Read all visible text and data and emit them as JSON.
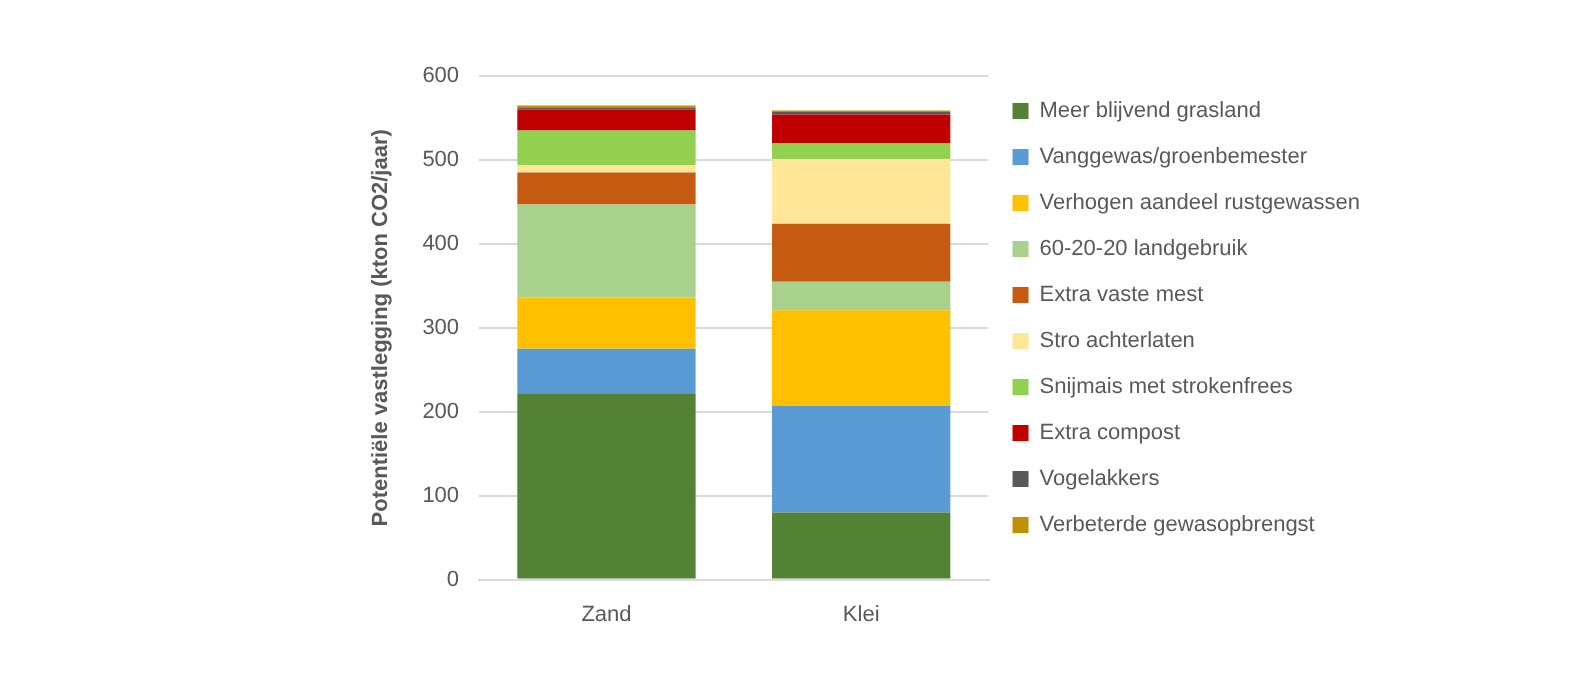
{
  "chart_data": {
    "type": "bar",
    "stacked": true,
    "ylabel": "Potentiële vastlegging (kton CO2/jaar)",
    "categories": [
      "Zand",
      "Klei"
    ],
    "ylim": [
      0,
      600
    ],
    "yticks": [
      0,
      100,
      200,
      300,
      400,
      500,
      600
    ],
    "grid": "y",
    "legend": "right",
    "series": [
      {
        "name": "Meer blijvend grasland",
        "color": "#548235",
        "values": [
          222,
          80
        ]
      },
      {
        "name": "Vanggewas/groenbemester",
        "color": "#5b9bd5",
        "values": [
          53,
          127
        ]
      },
      {
        "name": "Verhogen aandeel rustgewassen",
        "color": "#ffc000",
        "values": [
          61,
          114
        ]
      },
      {
        "name": "60-20-20 landgebruik",
        "color": "#a9d18e",
        "values": [
          111,
          34
        ]
      },
      {
        "name": "Extra vaste mest",
        "color": "#c55a11",
        "values": [
          38,
          69
        ]
      },
      {
        "name": "Stro achterlaten",
        "color": "#ffe699",
        "values": [
          9,
          77
        ]
      },
      {
        "name": "Snijmais met strokenfrees",
        "color": "#92d050",
        "values": [
          41,
          19
        ]
      },
      {
        "name": "Extra compost",
        "color": "#c00000",
        "values": [
          25,
          34
        ]
      },
      {
        "name": "Vogelakkers",
        "color": "#595959",
        "values": [
          2,
          3
        ]
      },
      {
        "name": "Verbeterde gewasopbrengst",
        "color": "#bf9000",
        "values": [
          3,
          2
        ]
      }
    ]
  }
}
